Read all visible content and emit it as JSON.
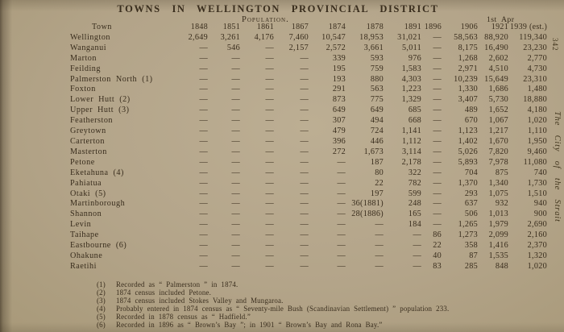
{
  "page": {
    "title": "TOWNS IN WELLINGTON PROVINCIAL DISTRICT",
    "population_label": "Population.",
    "first_apr_label": "1st Apr",
    "page_number": "342",
    "margin_title": "The City of the Strait",
    "paper_color": "#b3a489",
    "ink_color": "#392d1d"
  },
  "table": {
    "town_header": "Town",
    "year_headers": [
      "1848",
      "1851",
      "1861",
      "1867",
      "1874",
      "1878",
      "1891",
      "1896",
      "1906",
      "1921",
      "1939 (est.)"
    ],
    "rows": [
      {
        "town": "Wellington",
        "values": [
          "2,649",
          "3,261",
          "4,176",
          "7,460",
          "10,547",
          "18,953",
          "31,021",
          "—",
          "58,563",
          "88,920",
          "119,340"
        ]
      },
      {
        "town": "Wanganui",
        "values": [
          "—",
          "546",
          "—",
          "2,157",
          "2,572",
          "3,661",
          "5,011",
          "—",
          "8,175",
          "16,490",
          "23,230"
        ]
      },
      {
        "town": "Marton",
        "values": [
          "—",
          "—",
          "—",
          "—",
          "339",
          "593",
          "976",
          "—",
          "1,268",
          "2,602",
          "2,770"
        ]
      },
      {
        "town": "Feilding",
        "values": [
          "—",
          "—",
          "—",
          "—",
          "195",
          "759",
          "1,583",
          "—",
          "2,971",
          "4,510",
          "4,730"
        ]
      },
      {
        "town": "Palmerston North (1)",
        "values": [
          "—",
          "—",
          "—",
          "—",
          "193",
          "880",
          "4,303",
          "—",
          "10,239",
          "15,649",
          "23,310"
        ]
      },
      {
        "town": "Foxton",
        "values": [
          "—",
          "—",
          "—",
          "—",
          "291",
          "563",
          "1,223",
          "—",
          "1,330",
          "1,686",
          "1,480"
        ]
      },
      {
        "town": "Lower Hutt (2)",
        "values": [
          "—",
          "—",
          "—",
          "—",
          "873",
          "775",
          "1,329",
          "—",
          "3,407",
          "5,730",
          "18,880"
        ]
      },
      {
        "town": "Upper Hutt (3)",
        "values": [
          "—",
          "—",
          "—",
          "—",
          "649",
          "649",
          "685",
          "—",
          "489",
          "1,652",
          "4,180"
        ]
      },
      {
        "town": "Featherston",
        "values": [
          "—",
          "—",
          "—",
          "—",
          "307",
          "494",
          "668",
          "—",
          "670",
          "1,067",
          "1,020"
        ]
      },
      {
        "town": "Greytown",
        "values": [
          "—",
          "—",
          "—",
          "—",
          "479",
          "724",
          "1,141",
          "—",
          "1,123",
          "1,217",
          "1,110"
        ]
      },
      {
        "town": "Carterton",
        "values": [
          "—",
          "—",
          "—",
          "—",
          "396",
          "446",
          "1,112",
          "—",
          "1,402",
          "1,670",
          "1,950"
        ]
      },
      {
        "town": "Masterton",
        "values": [
          "—",
          "—",
          "—",
          "—",
          "272",
          "1,673",
          "3,114",
          "—",
          "5,026",
          "7,820",
          "9,460"
        ]
      },
      {
        "town": "Petone",
        "values": [
          "—",
          "—",
          "—",
          "—",
          "—",
          "187",
          "2,178",
          "—",
          "5,893",
          "7,978",
          "11,080"
        ]
      },
      {
        "town": "Eketahuna (4)",
        "values": [
          "—",
          "—",
          "—",
          "—",
          "—",
          "80",
          "322",
          "—",
          "704",
          "875",
          "740"
        ]
      },
      {
        "town": "Pahiatua",
        "values": [
          "—",
          "—",
          "—",
          "—",
          "—",
          "22",
          "782",
          "—",
          "1,370",
          "1,340",
          "1,730"
        ]
      },
      {
        "town": "Otaki (5)",
        "values": [
          "—",
          "—",
          "—",
          "—",
          "—",
          "197",
          "599",
          "—",
          "293",
          "1,075",
          "1,510"
        ]
      },
      {
        "town": "Martinborough",
        "values": [
          "—",
          "—",
          "—",
          "—",
          "—",
          "36(1881)",
          "248",
          "—",
          "637",
          "932",
          "940"
        ]
      },
      {
        "town": "Shannon",
        "values": [
          "—",
          "—",
          "—",
          "—",
          "—",
          "28(1886)",
          "165",
          "—",
          "506",
          "1,013",
          "900"
        ]
      },
      {
        "town": "Levin",
        "values": [
          "—",
          "—",
          "—",
          "—",
          "—",
          "—",
          "184",
          "—",
          "1,265",
          "1,979",
          "2,690"
        ]
      },
      {
        "town": "Taihape",
        "values": [
          "—",
          "—",
          "—",
          "—",
          "—",
          "—",
          "—",
          "86",
          "1,273",
          "2,099",
          "2,160"
        ]
      },
      {
        "town": "Eastbourne (6)",
        "values": [
          "—",
          "—",
          "—",
          "—",
          "—",
          "—",
          "—",
          "22",
          "358",
          "1,416",
          "2,370"
        ]
      },
      {
        "town": "Ohakune",
        "values": [
          "—",
          "—",
          "—",
          "—",
          "—",
          "—",
          "—",
          "40",
          "87",
          "1,535",
          "1,320"
        ]
      },
      {
        "town": "Raetihi",
        "values": [
          "—",
          "—",
          "—",
          "—",
          "—",
          "—",
          "—",
          "83",
          "285",
          "848",
          "1,020"
        ]
      }
    ]
  },
  "footnotes": [
    {
      "num": "(1)",
      "text": "Recorded as “ Palmerston ” in 1874."
    },
    {
      "num": "(2)",
      "text": "1874 census included Petone."
    },
    {
      "num": "(3)",
      "text": "1874 census included Stokes Valley and Mungaroa."
    },
    {
      "num": "(4)",
      "text": "Probably entered in 1874 census as “ Seventy-mile Bush (Scandinavian Settlement) ” population 233."
    },
    {
      "num": "(5)",
      "text": "Recorded in 1878 census as “ Hadfield.”"
    },
    {
      "num": "(6)",
      "text": "Recorded in 1896 as “ Brown’s Bay ”; in 1901 “ Brown’s Bay and Rona Bay.”"
    }
  ]
}
